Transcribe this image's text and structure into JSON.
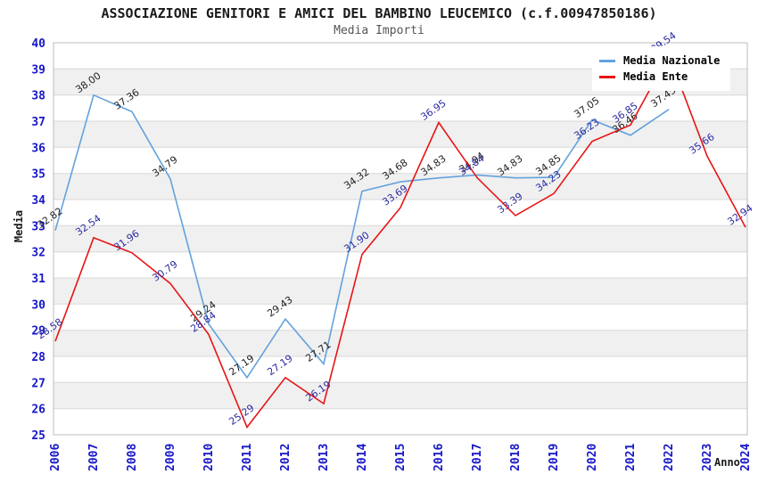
{
  "header": {
    "title": "ASSOCIAZIONE GENITORI E AMICI DEL BAMBINO LEUCEMICO (c.f.00947850186)",
    "subtitle": "Media Importi"
  },
  "axes": {
    "y_label": "Media",
    "x_label": "Anno",
    "y_ticks": [
      "25",
      "26",
      "27",
      "28",
      "29",
      "30",
      "31",
      "32",
      "33",
      "34",
      "35",
      "36",
      "37",
      "38",
      "39",
      "40"
    ],
    "x_ticks": [
      "2006",
      "2007",
      "2008",
      "2009",
      "2010",
      "2011",
      "2012",
      "2013",
      "2014",
      "2015",
      "2016",
      "2017",
      "2018",
      "2019",
      "2020",
      "2021",
      "2022",
      "2023",
      "2024"
    ]
  },
  "legend": [
    {
      "label": "Media Nazionale",
      "color": "#63a2dc"
    },
    {
      "label": "Media Ente",
      "color": "#e81414"
    }
  ],
  "colors": {
    "tick": "#1717c8",
    "band": "#f0f0f0",
    "grid": "#d8d8d8",
    "plot_border": "#bdbdbd"
  },
  "chart_data": {
    "type": "line",
    "title": "ASSOCIAZIONE GENITORI E AMICI DEL BAMBINO LEUCEMICO (c.f.00947850186)",
    "subtitle": "Media Importi",
    "xlabel": "Anno",
    "ylabel": "Media",
    "ylim": [
      25,
      40
    ],
    "grid": true,
    "legend_position": "top-right",
    "x": [
      2006,
      2007,
      2008,
      2009,
      2010,
      2011,
      2012,
      2013,
      2014,
      2015,
      2016,
      2017,
      2018,
      2019,
      2020,
      2021,
      2022,
      2023,
      2024
    ],
    "series": [
      {
        "name": "Media Nazionale",
        "color": "#63a2dc",
        "label_color": "#1f1f1f",
        "values": [
          32.82,
          38.0,
          37.36,
          34.79,
          29.24,
          27.19,
          29.43,
          27.71,
          34.32,
          34.68,
          34.83,
          34.94,
          34.83,
          34.85,
          37.05,
          36.46,
          37.45,
          null,
          null
        ]
      },
      {
        "name": "Media Ente",
        "color": "#e81414",
        "label_color": "#2b2ba0",
        "values": [
          28.58,
          32.54,
          31.96,
          30.79,
          28.84,
          25.29,
          27.19,
          26.19,
          31.9,
          33.69,
          36.95,
          34.84,
          33.39,
          34.23,
          36.23,
          36.85,
          39.54,
          35.66,
          32.94
        ]
      }
    ]
  }
}
